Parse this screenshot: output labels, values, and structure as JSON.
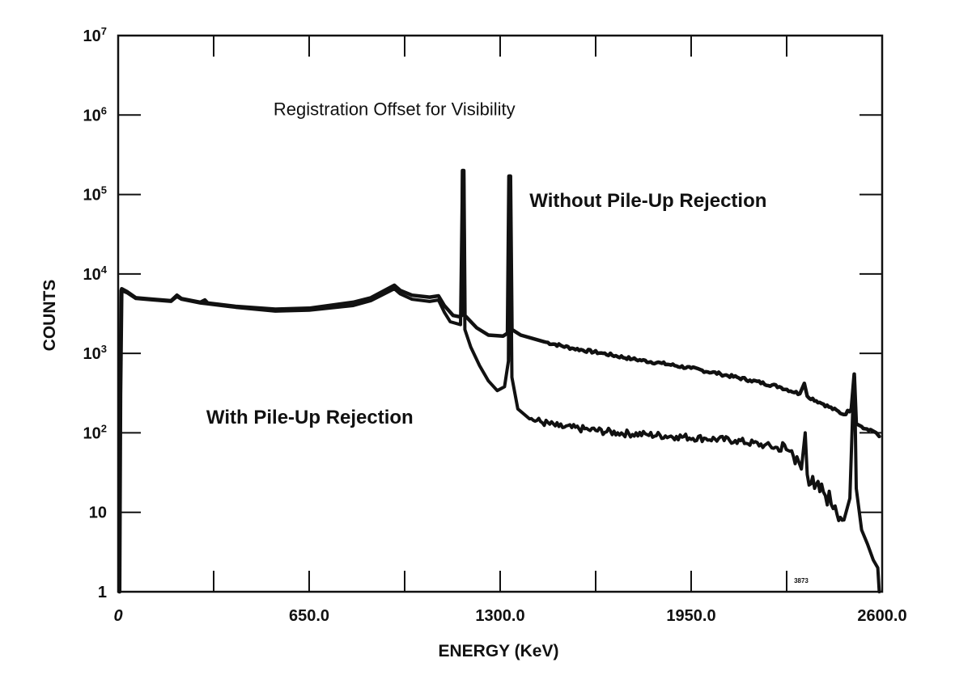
{
  "chart_data": {
    "type": "line",
    "title": "",
    "xlabel": "ENERGY (KeV)",
    "ylabel": "COUNTS",
    "xlim": [
      0,
      2600
    ],
    "ylim": [
      1,
      10000000
    ],
    "yscale": "log",
    "grid": false,
    "x_ticks": [
      0,
      325,
      650,
      975,
      1300,
      1625,
      1950,
      2275,
      2600
    ],
    "x_tick_labels": [
      {
        "value": 0,
        "label": "0"
      },
      {
        "value": 650,
        "label": "650.0"
      },
      {
        "value": 1300,
        "label": "1300.0"
      },
      {
        "value": 1950,
        "label": "1950.0"
      },
      {
        "value": 2600,
        "label": "2600.0"
      }
    ],
    "y_tick_labels": [
      {
        "value": 1,
        "base": "1",
        "exp": ""
      },
      {
        "value": 10,
        "base": "10",
        "exp": ""
      },
      {
        "value": 100,
        "base": "10",
        "exp": "2"
      },
      {
        "value": 1000,
        "base": "10",
        "exp": "3"
      },
      {
        "value": 10000,
        "base": "10",
        "exp": "4"
      },
      {
        "value": 100000,
        "base": "10",
        "exp": "5"
      },
      {
        "value": 1000000,
        "base": "10",
        "exp": "6"
      },
      {
        "value": 10000000,
        "base": "10",
        "exp": "7"
      }
    ],
    "annotations": [
      {
        "text": "Registration Offset for Visibility",
        "x": 940,
        "y": 1000000,
        "style": "plain"
      },
      {
        "text": "Without Pile-Up Rejection",
        "x": 1400,
        "y": 70000,
        "style": "bold"
      },
      {
        "text": "With Pile-Up Rejection",
        "x": 300,
        "y": 130,
        "style": "bold"
      },
      {
        "text": "3873",
        "x": 2300,
        "y": 1.3,
        "style": "small"
      }
    ],
    "series": [
      {
        "name": "Without Pile-Up Rejection",
        "color": "#111111",
        "points": [
          [
            5,
            1
          ],
          [
            8,
            300
          ],
          [
            12,
            6500
          ],
          [
            30,
            6000
          ],
          [
            60,
            5000
          ],
          [
            120,
            4800
          ],
          [
            180,
            4600
          ],
          [
            200,
            5400
          ],
          [
            215,
            4900
          ],
          [
            280,
            4400
          ],
          [
            295,
            4700
          ],
          [
            305,
            4300
          ],
          [
            400,
            3900
          ],
          [
            535,
            3600
          ],
          [
            650,
            3700
          ],
          [
            800,
            4400
          ],
          [
            860,
            5000
          ],
          [
            940,
            7200
          ],
          [
            960,
            6200
          ],
          [
            1000,
            5400
          ],
          [
            1060,
            5100
          ],
          [
            1090,
            5300
          ],
          [
            1110,
            4000
          ],
          [
            1140,
            3000
          ],
          [
            1160,
            2900
          ],
          [
            1170,
            3000
          ],
          [
            1172,
            200000
          ],
          [
            1176,
            200000
          ],
          [
            1180,
            3000
          ],
          [
            1220,
            2100
          ],
          [
            1260,
            1700
          ],
          [
            1310,
            1650
          ],
          [
            1325,
            1800
          ],
          [
            1330,
            170000
          ],
          [
            1335,
            170000
          ],
          [
            1340,
            2000
          ],
          [
            1370,
            1700
          ],
          [
            1450,
            1400
          ],
          [
            1550,
            1150
          ],
          [
            1650,
            1000
          ],
          [
            1750,
            850
          ],
          [
            1850,
            750
          ],
          [
            1950,
            650
          ],
          [
            2050,
            550
          ],
          [
            2150,
            460
          ],
          [
            2250,
            380
          ],
          [
            2320,
            310
          ],
          [
            2335,
            420
          ],
          [
            2345,
            290
          ],
          [
            2400,
            230
          ],
          [
            2470,
            170
          ],
          [
            2495,
            200
          ],
          [
            2505,
            550
          ],
          [
            2512,
            130
          ],
          [
            2530,
            120
          ],
          [
            2560,
            110
          ],
          [
            2580,
            100
          ],
          [
            2590,
            90
          ]
        ]
      },
      {
        "name": "With Pile-Up Rejection",
        "color": "#111111",
        "points": [
          [
            3,
            1
          ],
          [
            6,
            300
          ],
          [
            10,
            6200
          ],
          [
            30,
            5800
          ],
          [
            60,
            4900
          ],
          [
            120,
            4700
          ],
          [
            180,
            4500
          ],
          [
            200,
            5200
          ],
          [
            215,
            4800
          ],
          [
            280,
            4300
          ],
          [
            400,
            3800
          ],
          [
            535,
            3400
          ],
          [
            650,
            3500
          ],
          [
            800,
            4000
          ],
          [
            860,
            4600
          ],
          [
            940,
            6500
          ],
          [
            960,
            5600
          ],
          [
            1000,
            4800
          ],
          [
            1060,
            4500
          ],
          [
            1090,
            4700
          ],
          [
            1110,
            3300
          ],
          [
            1130,
            2500
          ],
          [
            1165,
            2300
          ],
          [
            1172,
            200000
          ],
          [
            1176,
            200000
          ],
          [
            1180,
            2000
          ],
          [
            1200,
            1200
          ],
          [
            1230,
            700
          ],
          [
            1260,
            450
          ],
          [
            1290,
            340
          ],
          [
            1315,
            380
          ],
          [
            1328,
            800
          ],
          [
            1331,
            170000
          ],
          [
            1334,
            170000
          ],
          [
            1340,
            500
          ],
          [
            1360,
            200
          ],
          [
            1400,
            150
          ],
          [
            1500,
            120
          ],
          [
            1600,
            110
          ],
          [
            1700,
            100
          ],
          [
            1800,
            95
          ],
          [
            1900,
            90
          ],
          [
            2000,
            85
          ],
          [
            2100,
            80
          ],
          [
            2200,
            70
          ],
          [
            2280,
            60
          ],
          [
            2310,
            50
          ],
          [
            2325,
            35
          ],
          [
            2338,
            100
          ],
          [
            2345,
            30
          ],
          [
            2370,
            20
          ],
          [
            2400,
            18
          ],
          [
            2440,
            12
          ],
          [
            2470,
            8
          ],
          [
            2490,
            15
          ],
          [
            2500,
            200
          ],
          [
            2506,
            500
          ],
          [
            2512,
            20
          ],
          [
            2530,
            6
          ],
          [
            2550,
            4
          ],
          [
            2570,
            2.5
          ],
          [
            2585,
            2
          ],
          [
            2590,
            1
          ]
        ]
      }
    ]
  }
}
